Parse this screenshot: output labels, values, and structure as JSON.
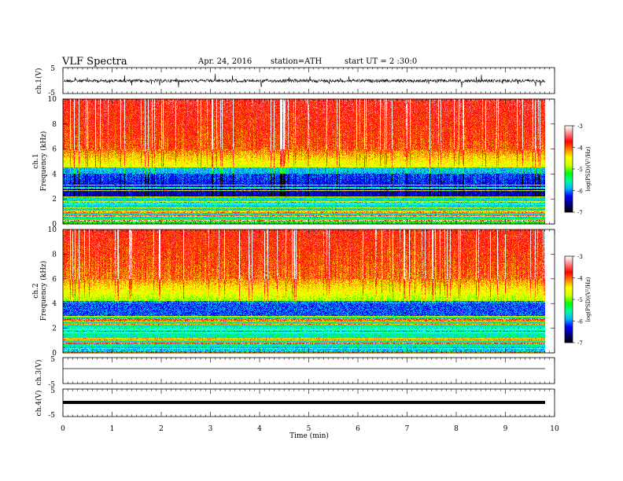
{
  "header": {
    "title": "VLF  Spectra",
    "date": "Apr. 24, 2016",
    "station": "station=ATH",
    "start": "start  UT  =   2  :30:0"
  },
  "chart_data": [
    {
      "type": "line",
      "ylabel": "ch.1(V)",
      "ylim": [
        -5,
        5
      ],
      "yticks": [
        "5",
        "-5"
      ],
      "description_level_V": 0.5,
      "noise": "continuous waveform with frequent spikes"
    },
    {
      "type": "heatmap",
      "ylabel": "ch.1\nFrequency  (kHz)",
      "ylim": [
        0,
        10
      ],
      "yticks": [
        "0",
        "2",
        "4",
        "6",
        "8",
        "10"
      ],
      "colorbar": {
        "label": "log(PSD)(V²/Hz)",
        "range": [
          -7,
          -3
        ],
        "ticks": [
          "-3",
          "-4",
          "-5",
          "-6",
          "-7"
        ]
      }
    },
    {
      "type": "heatmap",
      "ylabel": "ch.2\nFrequency  (kHz)",
      "ylim": [
        0,
        10
      ],
      "yticks": [
        "0",
        "2",
        "4",
        "6",
        "8",
        "10"
      ],
      "colorbar": {
        "label": "log(PSD)(V²/Hz)",
        "range": [
          -7,
          -3
        ],
        "ticks": [
          "-3",
          "-4",
          "-5",
          "-6",
          "-7"
        ]
      }
    },
    {
      "type": "line",
      "ylabel": "ch.3(V)",
      "ylim": [
        -5,
        5
      ],
      "yticks": [
        "5",
        "-5"
      ],
      "level_V": 0
    },
    {
      "type": "line",
      "ylabel": "ch.4(V)",
      "ylim": [
        -5,
        5
      ],
      "yticks": [
        "5",
        "-5"
      ],
      "level_V": 0
    }
  ],
  "xaxis": {
    "xlabel": "Time  (min)",
    "xlim": [
      0,
      10
    ],
    "xticks": [
      "0",
      "1",
      "2",
      "3",
      "4",
      "5",
      "6",
      "7",
      "8",
      "9",
      "10"
    ],
    "data_end_min": 9.8
  },
  "colorscale": [
    "#000000",
    "#00007f",
    "#0000ff",
    "#00b4ff",
    "#00ffa0",
    "#00ff00",
    "#d2ff00",
    "#ffff00",
    "#ff8000",
    "#ff0000",
    "#ff8080",
    "#ffffff"
  ]
}
